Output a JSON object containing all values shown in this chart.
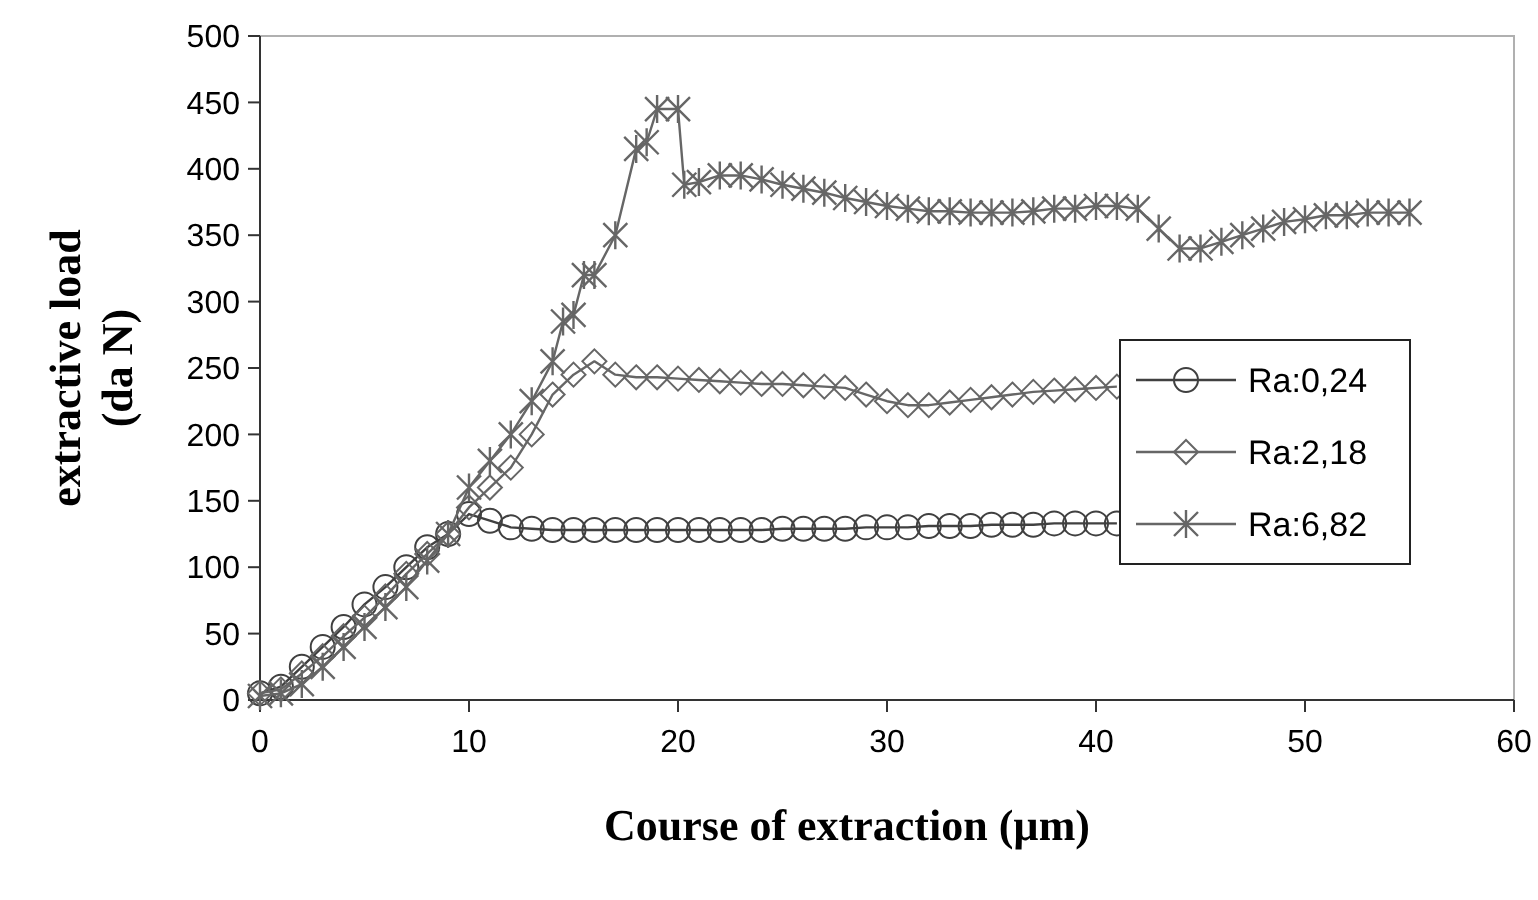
{
  "chart_data": {
    "type": "line",
    "xlabel": "Course of extraction (µm)",
    "ylabel": "extractive load (da N)",
    "xlim": [
      0,
      60
    ],
    "xticks": [
      0,
      10,
      20,
      30,
      40,
      50,
      60
    ],
    "ylim": [
      0,
      500
    ],
    "yticks": [
      0,
      50,
      100,
      150,
      200,
      250,
      300,
      350,
      400,
      450,
      500
    ],
    "grid": false,
    "legend": "right",
    "line_style": "solid",
    "series": [
      {
        "name": "Ra:0,24",
        "color": "#404040",
        "marker": "circle",
        "x": [
          0,
          1,
          2,
          3,
          4,
          5,
          6,
          7,
          8,
          9,
          10,
          11,
          12,
          13,
          14,
          15,
          16,
          17,
          18,
          19,
          20,
          21,
          22,
          23,
          24,
          25,
          26,
          27,
          28,
          29,
          30,
          31,
          32,
          33,
          34,
          35,
          36,
          37,
          38,
          39,
          40,
          41
        ],
        "values": [
          5,
          10,
          25,
          40,
          55,
          72,
          85,
          100,
          115,
          125,
          140,
          135,
          130,
          129,
          128,
          128,
          128,
          128,
          128,
          128,
          128,
          128,
          128,
          128,
          128,
          129,
          129,
          129,
          129,
          130,
          130,
          130,
          131,
          131,
          131,
          132,
          132,
          132,
          133,
          133,
          133,
          133
        ]
      },
      {
        "name": "Ra:2,18",
        "color": "#666666",
        "marker": "diamond",
        "x": [
          0,
          1,
          2,
          3,
          4,
          5,
          6,
          7,
          8,
          9,
          10,
          11,
          12,
          13,
          14,
          15,
          16,
          17,
          18,
          19,
          20,
          21,
          22,
          23,
          24,
          25,
          26,
          27,
          28,
          29,
          30,
          31,
          32,
          33,
          34,
          35,
          36,
          37,
          38,
          39,
          40,
          41
        ],
        "values": [
          5,
          8,
          20,
          33,
          48,
          62,
          78,
          95,
          110,
          125,
          145,
          160,
          175,
          200,
          230,
          245,
          255,
          245,
          243,
          243,
          242,
          241,
          240,
          239,
          238,
          238,
          237,
          236,
          235,
          230,
          225,
          222,
          222,
          224,
          226,
          228,
          230,
          232,
          233,
          234,
          235,
          236
        ]
      },
      {
        "name": "Ra:6,82",
        "color": "#666666",
        "marker": "cross",
        "x": [
          0,
          1,
          2,
          3,
          4,
          5,
          6,
          7,
          8,
          9,
          10,
          11,
          12,
          13,
          14,
          14.5,
          15,
          15.5,
          16,
          17,
          18,
          18.5,
          19,
          20,
          20.3,
          21,
          22,
          23,
          24,
          25,
          26,
          27,
          28,
          29,
          30,
          31,
          32,
          33,
          34,
          35,
          36,
          37,
          38,
          39,
          40,
          41,
          42,
          43,
          44,
          45,
          46,
          47,
          48,
          49,
          50,
          51,
          52,
          53,
          54,
          55
        ],
        "values": [
          3,
          5,
          12,
          25,
          40,
          55,
          70,
          85,
          105,
          125,
          160,
          180,
          200,
          225,
          255,
          285,
          290,
          320,
          320,
          350,
          415,
          420,
          445,
          445,
          388,
          390,
          395,
          395,
          392,
          388,
          385,
          382,
          378,
          375,
          372,
          370,
          368,
          368,
          367,
          367,
          367,
          368,
          370,
          370,
          372,
          372,
          370,
          355,
          340,
          340,
          345,
          350,
          355,
          360,
          362,
          365,
          365,
          367,
          367,
          367
        ]
      }
    ]
  }
}
